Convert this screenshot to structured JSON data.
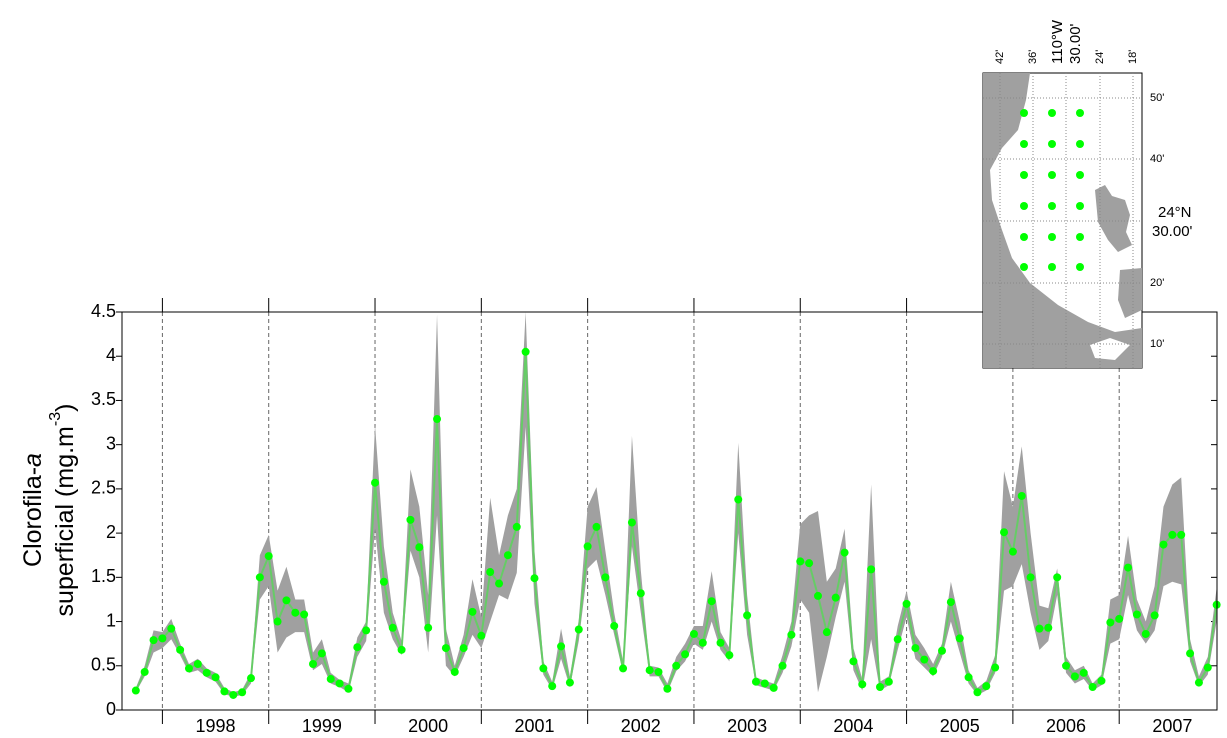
{
  "chart_data": {
    "type": "line",
    "y_label": [
      "Clorofila-",
      "a",
      "superficial (mg.m",
      "-3",
      ")"
    ],
    "xlim": [
      1997.62,
      2007.92
    ],
    "xticks": [
      {
        "value": 1998,
        "label": "1998"
      },
      {
        "value": 1999,
        "label": "1999"
      },
      {
        "value": 2000,
        "label": "2000"
      },
      {
        "value": 2001,
        "label": "2001"
      },
      {
        "value": 2002,
        "label": "2002"
      },
      {
        "value": 2003,
        "label": "2003"
      },
      {
        "value": 2004,
        "label": "2004"
      },
      {
        "value": 2005,
        "label": "2005"
      },
      {
        "value": 2006,
        "label": "2006"
      },
      {
        "value": 2007,
        "label": "2007"
      }
    ],
    "ylim": [
      0,
      4.5
    ],
    "yticks": [
      0,
      0.5,
      1,
      1.5,
      2,
      2.5,
      3,
      3.5,
      4,
      4.5
    ],
    "x": [
      1997.75,
      1997.8333,
      1997.9167,
      1998,
      1998.0833,
      1998.1667,
      1998.25,
      1998.3333,
      1998.4167,
      1998.5,
      1998.5833,
      1998.6667,
      1998.75,
      1998.8333,
      1998.9167,
      1999,
      1999.0833,
      1999.1667,
      1999.25,
      1999.3333,
      1999.4167,
      1999.5,
      1999.5833,
      1999.6667,
      1999.75,
      1999.8333,
      1999.9167,
      2000,
      2000.0833,
      2000.1667,
      2000.25,
      2000.3333,
      2000.4167,
      2000.5,
      2000.5833,
      2000.6667,
      2000.75,
      2000.8333,
      2000.9167,
      2001,
      2001.0833,
      2001.1667,
      2001.25,
      2001.3333,
      2001.4167,
      2001.5,
      2001.5833,
      2001.6667,
      2001.75,
      2001.8333,
      2001.9167,
      2002,
      2002.0833,
      2002.1667,
      2002.25,
      2002.3333,
      2002.4167,
      2002.5,
      2002.5833,
      2002.6667,
      2002.75,
      2002.8333,
      2002.9167,
      2003,
      2003.0833,
      2003.1667,
      2003.25,
      2003.3333,
      2003.4167,
      2003.5,
      2003.5833,
      2003.6667,
      2003.75,
      2003.8333,
      2003.9167,
      2004,
      2004.0833,
      2004.1667,
      2004.25,
      2004.3333,
      2004.4167,
      2004.5,
      2004.5833,
      2004.6667,
      2004.75,
      2004.8333,
      2004.9167,
      2005,
      2005.0833,
      2005.1667,
      2005.25,
      2005.3333,
      2005.4167,
      2005.5,
      2005.5833,
      2005.6667,
      2005.75,
      2005.8333,
      2005.9167,
      2006,
      2006.0833,
      2006.1667,
      2006.25,
      2006.3333,
      2006.4167,
      2006.5,
      2006.5833,
      2006.6667,
      2006.75,
      2006.8333,
      2006.9167,
      2007,
      2007.0833,
      2007.1667,
      2007.25,
      2007.3333,
      2007.4167,
      2007.5,
      2007.5833,
      2007.6667,
      2007.75,
      2007.8333,
      2007.9167
    ],
    "series": [
      {
        "color": "#00ff00",
        "line_color": "#66cc66",
        "values": [
          0.22,
          0.43,
          0.79,
          0.81,
          0.92,
          0.68,
          0.47,
          0.52,
          0.42,
          0.37,
          0.21,
          0.17,
          0.2,
          0.36,
          1.5,
          1.74,
          1.0,
          1.24,
          1.1,
          1.08,
          0.52,
          0.64,
          0.35,
          0.3,
          0.24,
          0.71,
          0.9,
          2.57,
          1.45,
          0.93,
          0.68,
          2.15,
          1.84,
          0.93,
          3.29,
          0.7,
          0.43,
          0.7,
          1.11,
          0.84,
          1.56,
          1.43,
          1.75,
          2.07,
          4.05,
          1.49,
          0.47,
          0.27,
          0.72,
          0.31,
          0.91,
          1.85,
          2.07,
          1.5,
          0.95,
          0.47,
          2.12,
          1.32,
          0.45,
          0.43,
          0.24,
          0.5,
          0.63,
          0.86,
          0.76,
          1.23,
          0.76,
          0.62,
          2.38,
          1.07,
          0.32,
          0.3,
          0.25,
          0.5,
          0.85,
          1.68,
          1.66,
          1.29,
          0.88,
          1.27,
          1.78,
          0.55,
          0.29,
          1.59,
          0.26,
          0.32,
          0.8,
          1.2,
          0.7,
          0.57,
          0.44,
          0.67,
          1.22,
          0.81,
          0.37,
          0.2,
          0.27,
          0.48,
          2.01,
          1.79,
          2.42,
          1.5,
          0.92,
          0.93,
          1.5,
          0.5,
          0.38,
          0.42,
          0.26,
          0.33,
          0.99,
          1.03,
          1.61,
          1.08,
          0.86,
          1.07,
          1.87,
          1.98,
          1.98,
          0.64,
          0.31,
          0.48,
          1.19
        ]
      }
    ],
    "band": {
      "color": "#a0a0a0",
      "upper": [
        0.25,
        0.5,
        0.9,
        0.88,
        1.03,
        0.75,
        0.52,
        0.58,
        0.47,
        0.42,
        0.25,
        0.2,
        0.23,
        0.42,
        1.75,
        1.98,
        1.35,
        1.62,
        1.25,
        1.25,
        0.65,
        0.8,
        0.42,
        0.34,
        0.3,
        0.82,
        1.0,
        3.22,
        1.85,
        1.1,
        0.78,
        2.72,
        2.3,
        1.3,
        4.47,
        0.92,
        0.5,
        0.85,
        1.48,
        1.05,
        2.4,
        1.75,
        2.2,
        2.5,
        4.5,
        1.8,
        0.55,
        0.32,
        0.92,
        0.38,
        1.02,
        2.3,
        2.52,
        1.8,
        1.1,
        0.55,
        3.1,
        1.58,
        0.5,
        0.48,
        0.3,
        0.6,
        0.75,
        0.95,
        0.95,
        1.57,
        0.88,
        0.7,
        3.02,
        1.3,
        0.37,
        0.33,
        0.3,
        0.62,
        1.0,
        2.1,
        2.2,
        2.25,
        1.45,
        1.6,
        2.05,
        0.7,
        0.35,
        2.55,
        0.32,
        0.38,
        0.95,
        1.35,
        0.85,
        0.7,
        0.52,
        0.75,
        1.45,
        1.0,
        0.45,
        0.25,
        0.33,
        0.62,
        2.7,
        2.3,
        2.98,
        2.0,
        1.18,
        1.15,
        1.6,
        0.6,
        0.45,
        0.5,
        0.3,
        0.4,
        1.25,
        1.3,
        1.97,
        1.25,
        1.0,
        1.4,
        2.3,
        2.55,
        2.63,
        0.8,
        0.38,
        0.6,
        1.38
      ],
      "lower": [
        0.2,
        0.38,
        0.65,
        0.7,
        0.8,
        0.62,
        0.42,
        0.45,
        0.37,
        0.32,
        0.18,
        0.15,
        0.17,
        0.3,
        1.25,
        1.4,
        0.65,
        0.82,
        0.88,
        0.88,
        0.45,
        0.52,
        0.3,
        0.26,
        0.2,
        0.6,
        0.78,
        2.05,
        1.1,
        0.8,
        0.62,
        1.8,
        1.5,
        0.65,
        2.2,
        0.5,
        0.38,
        0.6,
        0.85,
        0.7,
        1.0,
        1.3,
        1.25,
        1.55,
        3.2,
        1.2,
        0.4,
        0.23,
        0.58,
        0.26,
        0.78,
        1.6,
        1.7,
        1.3,
        0.85,
        0.42,
        1.85,
        1.1,
        0.38,
        0.38,
        0.2,
        0.44,
        0.55,
        0.75,
        0.68,
        1.0,
        0.68,
        0.55,
        2.0,
        0.85,
        0.28,
        0.25,
        0.22,
        0.42,
        0.72,
        1.25,
        1.1,
        0.2,
        0.6,
        1.05,
        1.45,
        0.45,
        0.22,
        0.8,
        0.22,
        0.28,
        0.68,
        1.05,
        0.58,
        0.48,
        0.38,
        0.6,
        1.0,
        0.65,
        0.3,
        0.17,
        0.22,
        0.42,
        1.35,
        1.4,
        1.65,
        1.1,
        0.68,
        0.78,
        1.3,
        0.42,
        0.3,
        0.35,
        0.22,
        0.28,
        0.75,
        0.8,
        1.3,
        0.9,
        0.75,
        0.9,
        1.4,
        1.45,
        1.42,
        0.55,
        0.27,
        0.4,
        1.0
      ]
    }
  },
  "inset": {
    "lon_labels": [
      "42'",
      "36'",
      "24'",
      "18'"
    ],
    "lon_center": [
      "110°W",
      "30.00'"
    ],
    "lat_labels": [
      "50'",
      "40'",
      "20'",
      "10'"
    ],
    "lat_center": [
      "24°N",
      "30.00'"
    ]
  }
}
